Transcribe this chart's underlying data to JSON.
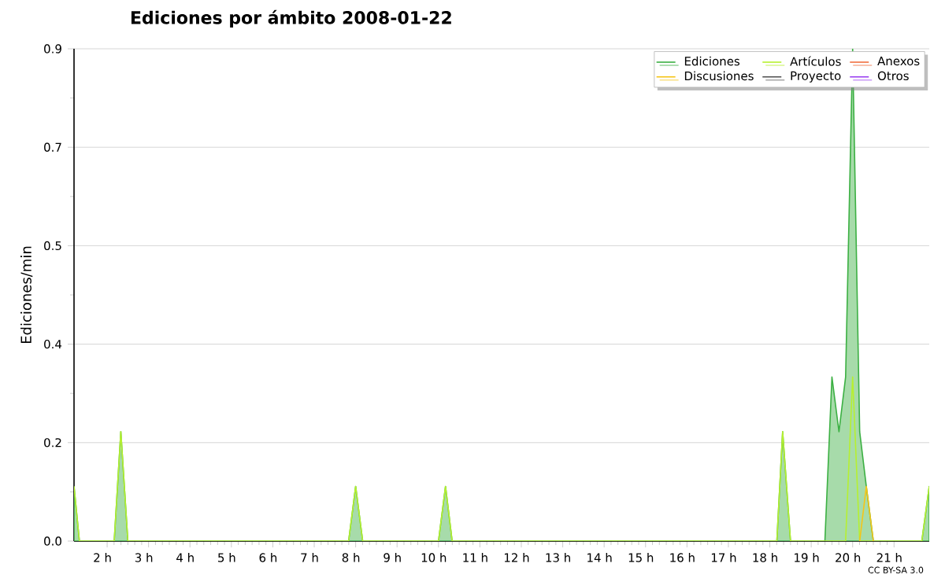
{
  "chart_data": {
    "type": "area",
    "title": "Ediciones por ámbito  2008-01-22",
    "ylabel": "Ediciones/min",
    "annotations": [
      "CC BY-SA 3.0"
    ],
    "xlim": [
      1.2,
      21.85
    ],
    "xticks": [
      {
        "value": 2,
        "label": "2 h"
      },
      {
        "value": 3,
        "label": "3 h"
      },
      {
        "value": 4,
        "label": "4 h"
      },
      {
        "value": 5,
        "label": "5 h"
      },
      {
        "value": 6,
        "label": "6 h"
      },
      {
        "value": 7,
        "label": "7 h"
      },
      {
        "value": 8,
        "label": "8 h"
      },
      {
        "value": 9,
        "label": "9 h"
      },
      {
        "value": 10,
        "label": "10 h"
      },
      {
        "value": 11,
        "label": "11 h"
      },
      {
        "value": 12,
        "label": "12 h"
      },
      {
        "value": 13,
        "label": "13 h"
      },
      {
        "value": 14,
        "label": "14 h"
      },
      {
        "value": 15,
        "label": "15 h"
      },
      {
        "value": 16,
        "label": "16 h"
      },
      {
        "value": 17,
        "label": "17 h"
      },
      {
        "value": 18,
        "label": "18 h"
      },
      {
        "value": 19,
        "label": "19 h"
      },
      {
        "value": 20,
        "label": "20 h"
      },
      {
        "value": 21,
        "label": "21 h"
      }
    ],
    "ylim": [
      0,
      0.9
    ],
    "yticks": [
      {
        "value": 0,
        "label": "0.0"
      },
      {
        "value": 0.18,
        "label": "0.2"
      },
      {
        "value": 0.36,
        "label": "0.4"
      },
      {
        "value": 0.54,
        "label": "0.5"
      },
      {
        "value": 0.72,
        "label": "0.7"
      },
      {
        "value": 0.9,
        "label": "0.9"
      }
    ],
    "grid": "y",
    "legend": "top right",
    "series": [
      {
        "name": "Ediciones",
        "color": "#3cb043",
        "x": [
          1.2,
          1.33,
          2.17,
          2.33,
          2.5,
          7.83,
          8.0,
          8.17,
          10.0,
          10.17,
          10.33,
          18.17,
          18.31,
          18.5,
          19.33,
          19.5,
          19.67,
          19.83,
          20.0,
          20.17,
          20.33,
          20.5,
          21.67,
          21.85
        ],
        "values": [
          0.1,
          0,
          0,
          0.2,
          0,
          0,
          0.1,
          0,
          0,
          0.1,
          0,
          0,
          0.2,
          0,
          0,
          0.3,
          0.2,
          0.3,
          0.9,
          0.2,
          0.1,
          0,
          0,
          0.1
        ]
      },
      {
        "name": "Artículos",
        "type": "line",
        "color": "#b7f030",
        "x": [
          1.2,
          1.33,
          2.17,
          2.33,
          2.5,
          7.83,
          8.0,
          8.17,
          10.0,
          10.17,
          10.33,
          18.17,
          18.31,
          18.5,
          19.83,
          20.0,
          20.17,
          21.67,
          21.85
        ],
        "values": [
          0.1,
          0,
          0,
          0.2,
          0,
          0,
          0.1,
          0,
          0,
          0.1,
          0,
          0,
          0.2,
          0,
          0,
          0.3,
          0,
          0,
          0.1
        ]
      },
      {
        "name": "Anexos",
        "type": "line",
        "color": "#f07040"
      },
      {
        "name": "Discusiones",
        "type": "line",
        "color": "#f5c518",
        "x": [
          20.17,
          20.33,
          20.5
        ],
        "values": [
          0,
          0.1,
          0
        ]
      },
      {
        "name": "Proyecto",
        "type": "line",
        "color": "#555555"
      },
      {
        "name": "Otros",
        "type": "line",
        "color": "#9a40f0"
      }
    ]
  }
}
